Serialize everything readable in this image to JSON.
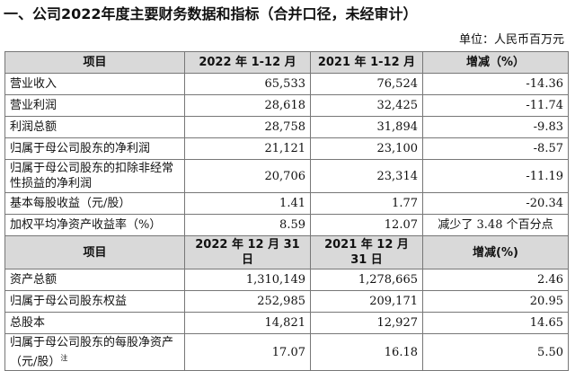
{
  "title": "一、公司2022年度主要财务数据和指标（合并口径，未经审计）",
  "unit": "单位：人民币百万元",
  "table": {
    "note": "注",
    "sections": [
      {
        "header": [
          "项目",
          "2022 年 1-12 月",
          "2021 年 1-12 月",
          "增减（%）"
        ],
        "rows": [
          [
            "营业收入",
            "65,533",
            "76,524",
            "-14.36"
          ],
          [
            "营业利润",
            "28,618",
            "32,425",
            "-11.74"
          ],
          [
            "利润总额",
            "28,758",
            "31,894",
            "-9.83"
          ],
          [
            "归属于母公司股东的净利润",
            "21,121",
            "23,100",
            "-8.57"
          ],
          [
            "归属于母公司股东的扣除非经常性损益的净利润",
            "20,706",
            "23,314",
            "-11.19"
          ],
          [
            "基本每股收益（元/股）",
            "1.41",
            "1.77",
            "-20.34"
          ],
          [
            "加权平均净资产收益率（%）",
            "8.59",
            "12.07",
            "减少了 3.48 个百分点"
          ]
        ]
      },
      {
        "header": [
          "项目",
          "2022 年 12 月 31 日",
          "2021 年 12 月 31 日",
          "增减(%)"
        ],
        "rows": [
          [
            "资产总额",
            "1,310,149",
            "1,278,665",
            "2.46"
          ],
          [
            "归属于母公司股东权益",
            "252,985",
            "209,171",
            "20.95"
          ],
          [
            "总股本",
            "14,821",
            "12,927",
            "14.65"
          ],
          [
            "归属于母公司股东的每股净资产（元/股）",
            "17.07",
            "16.18",
            "5.50"
          ]
        ]
      }
    ]
  }
}
